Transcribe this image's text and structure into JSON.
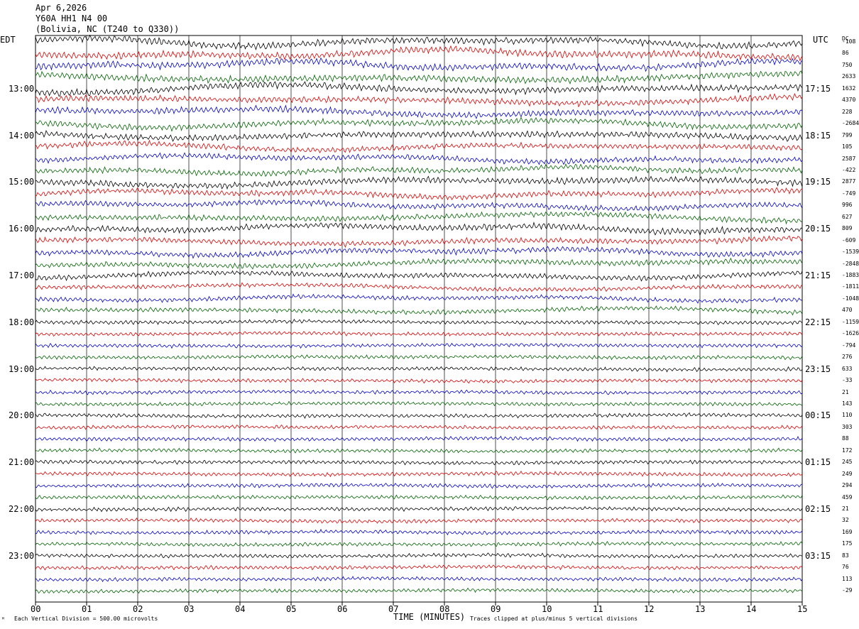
{
  "header": {
    "date": "Apr 6,2026",
    "station": "Y60A HH1 N4 00",
    "location": "(Bolivia, NC (T240 to Q330))"
  },
  "chart_data": {
    "type": "line",
    "title": "Apr 6,2026",
    "xlabel": "TIME (MINUTES)",
    "x_ticks": [
      "00",
      "01",
      "02",
      "03",
      "04",
      "05",
      "06",
      "07",
      "08",
      "09",
      "10",
      "11",
      "12",
      "13",
      "14",
      "15"
    ],
    "xlim": [
      0,
      15
    ],
    "left_axis_title": "EDT",
    "right_axis_title": "UTC",
    "dc_column_title": "DC",
    "left_hour_labels": [
      "13:00",
      "14:00",
      "15:00",
      "16:00",
      "17:00",
      "18:00",
      "19:00",
      "20:00",
      "21:00",
      "22:00",
      "23:00"
    ],
    "right_hour_labels": [
      "17:15",
      "18:15",
      "19:15",
      "20:15",
      "21:15",
      "22:15",
      "23:15",
      "00:15",
      "01:15",
      "02:15",
      "03:15"
    ],
    "first_labeled_trace_index": 4,
    "traces_per_hour": 4,
    "trace_colors": [
      "#000000",
      "#dd0000",
      "#0000cc",
      "#006400"
    ],
    "dc_offsets": [
      "-108",
      "86",
      "750",
      "2633",
      "1632",
      "4370",
      "228",
      "-2684",
      "799",
      "105",
      "2587",
      "-422",
      "2877",
      "-749",
      "996",
      "627",
      "809",
      "-609",
      "-1539",
      "-2848",
      "-1883",
      "-1811",
      "-1048",
      "470",
      "-1159",
      "-1626",
      "-794",
      "276",
      "633",
      "-33",
      "21",
      "143",
      "110",
      "303",
      "88",
      "172",
      "245",
      "249",
      "294",
      "459",
      "21",
      "32",
      "169",
      "175",
      "83",
      "76",
      "113",
      "-29"
    ],
    "trace_amplitudes": [
      0.55,
      0.55,
      0.55,
      0.55,
      0.55,
      0.5,
      0.5,
      0.5,
      0.5,
      0.45,
      0.45,
      0.45,
      0.5,
      0.45,
      0.45,
      0.45,
      0.5,
      0.45,
      0.45,
      0.45,
      0.4,
      0.35,
      0.35,
      0.35,
      0.3,
      0.3,
      0.3,
      0.3,
      0.3,
      0.3,
      0.3,
      0.3,
      0.3,
      0.3,
      0.3,
      0.3,
      0.3,
      0.3,
      0.3,
      0.3,
      0.3,
      0.3,
      0.3,
      0.3,
      0.3,
      0.3,
      0.3,
      0.3
    ],
    "vertical_scale": "Each Vertical Division =  500.00 microvolts",
    "clip_note": "Traces clipped at plus/minus 5 vertical divisions"
  }
}
